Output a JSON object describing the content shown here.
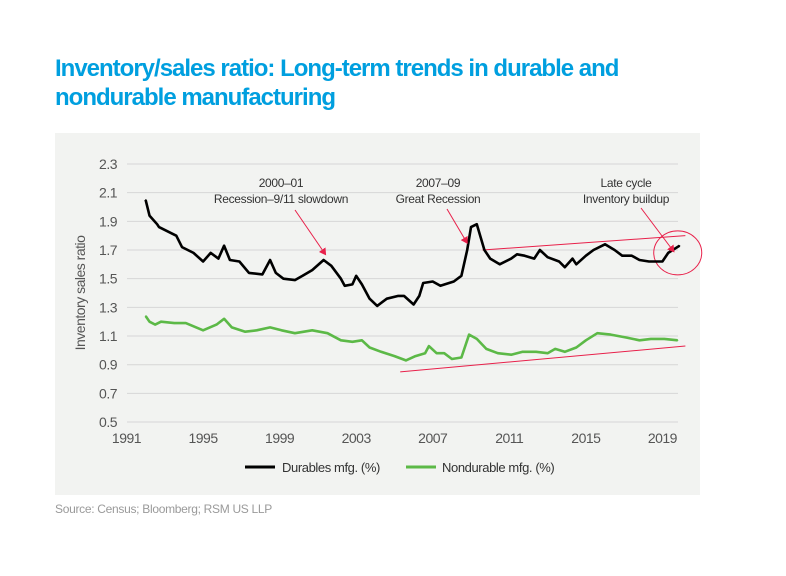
{
  "title": "Inventory/sales ratio: Long-term trends in durable and nondurable manufacturing",
  "source": "Source: Census; Bloomberg; RSM US LLP",
  "colors": {
    "title": "#009fdf",
    "durables": "#000000",
    "nondurables": "#5cb947",
    "annotation": "#e8204a",
    "background": "#f2f3f1"
  },
  "chart_data": {
    "type": "line",
    "title": "Inventory/sales ratio: Long-term trends in durable and nondurable manufacturing",
    "xlabel": "",
    "ylabel": "Inventory sales ratio",
    "xlim": [
      1991,
      2020.5
    ],
    "ylim": [
      0.5,
      2.3
    ],
    "xticks": [
      "1991",
      "1995",
      "1999",
      "2003",
      "2007",
      "2011",
      "2015",
      "2019"
    ],
    "yticks": [
      "2.3",
      "2.1",
      "1.9",
      "1.7",
      "1.5",
      "1.3",
      "1.1",
      "0.9",
      "0.7",
      "0.5"
    ],
    "grid": "horizontal",
    "legend": "bottom",
    "series": [
      {
        "name": "Durables mfg. (%)",
        "color": "#000000",
        "x": [
          1992.0,
          1992.2,
          1992.6,
          1992.7,
          1993.3,
          1993.6,
          1993.9,
          1994.5,
          1995.0,
          1995.4,
          1995.8,
          1996.1,
          1996.4,
          1996.9,
          1997.4,
          1998.1,
          1998.5,
          1998.8,
          1999.2,
          1999.8,
          2000.2,
          2000.7,
          2001.3,
          2001.7,
          2002.2,
          2002.4,
          2002.8,
          2003.0,
          2003.3,
          2003.7,
          2004.1,
          2004.6,
          2005.2,
          2005.5,
          2006.0,
          2006.3,
          2006.5,
          2007.0,
          2007.4,
          2008.1,
          2008.5,
          2008.8,
          2009.0,
          2009.3,
          2009.7,
          2010.0,
          2010.5,
          2011.1,
          2011.4,
          2011.8,
          2012.3,
          2012.6,
          2013.0,
          2013.6,
          2013.9,
          2014.3,
          2014.5,
          2015.0,
          2015.4,
          2016.0,
          2016.5,
          2016.9,
          2017.4,
          2017.8,
          2018.3,
          2019.0,
          2019.3,
          2019.9
        ],
        "y": [
          2.05,
          1.94,
          1.88,
          1.86,
          1.82,
          1.8,
          1.72,
          1.68,
          1.62,
          1.68,
          1.64,
          1.73,
          1.63,
          1.62,
          1.54,
          1.53,
          1.63,
          1.54,
          1.5,
          1.49,
          1.52,
          1.56,
          1.63,
          1.59,
          1.5,
          1.45,
          1.46,
          1.52,
          1.46,
          1.36,
          1.31,
          1.36,
          1.38,
          1.38,
          1.32,
          1.38,
          1.47,
          1.48,
          1.45,
          1.48,
          1.52,
          1.7,
          1.86,
          1.88,
          1.7,
          1.64,
          1.6,
          1.64,
          1.67,
          1.66,
          1.64,
          1.7,
          1.65,
          1.62,
          1.58,
          1.64,
          1.6,
          1.66,
          1.7,
          1.74,
          1.7,
          1.66,
          1.66,
          1.63,
          1.62,
          1.62,
          1.68,
          1.73
        ]
      },
      {
        "name": "Nondurable mfg. (%)",
        "color": "#5cb947",
        "x": [
          1992.0,
          1992.2,
          1992.5,
          1992.8,
          1993.5,
          1994.1,
          1995.0,
          1995.7,
          1996.1,
          1996.5,
          1997.2,
          1997.8,
          1998.5,
          1999.1,
          1999.8,
          2000.7,
          2001.5,
          2002.2,
          2002.8,
          2003.3,
          2003.7,
          2004.3,
          2005.0,
          2005.6,
          2006.1,
          2006.6,
          2006.8,
          2007.2,
          2007.6,
          2008.0,
          2008.5,
          2008.9,
          2009.3,
          2009.8,
          2010.4,
          2011.1,
          2011.7,
          2012.4,
          2013.0,
          2013.4,
          2013.9,
          2014.5,
          2015.0,
          2015.6,
          2016.3,
          2017.1,
          2017.8,
          2018.4,
          2019.1,
          2019.8
        ],
        "y": [
          1.24,
          1.2,
          1.18,
          1.2,
          1.19,
          1.19,
          1.14,
          1.18,
          1.22,
          1.16,
          1.13,
          1.14,
          1.16,
          1.14,
          1.12,
          1.14,
          1.12,
          1.07,
          1.06,
          1.07,
          1.02,
          0.99,
          0.96,
          0.93,
          0.96,
          0.98,
          1.03,
          0.98,
          0.98,
          0.94,
          0.95,
          1.11,
          1.08,
          1.01,
          0.98,
          0.97,
          0.99,
          0.99,
          0.98,
          1.01,
          0.99,
          1.02,
          1.07,
          1.12,
          1.11,
          1.09,
          1.07,
          1.08,
          1.08,
          1.07
        ]
      }
    ],
    "annotations": [
      {
        "line1": "2000–01",
        "line2": "Recession–9/11 slowdown",
        "x": 2001.4,
        "y": 1.64
      },
      {
        "line1": "2007–09",
        "line2": "Great Recession",
        "x": 2008.8,
        "y": 1.72
      },
      {
        "line1": "Late cycle",
        "line2": "Inventory buildup",
        "x": 2019.6,
        "y": 1.66
      }
    ],
    "trendlines": [
      {
        "x": [
          2009.6,
          2020.2
        ],
        "y": [
          1.7,
          1.8
        ]
      },
      {
        "x": [
          2005.3,
          2020.2
        ],
        "y": [
          0.85,
          1.03
        ]
      }
    ],
    "highlight_circle": {
      "x": 2019.8,
      "y": 1.68
    }
  }
}
